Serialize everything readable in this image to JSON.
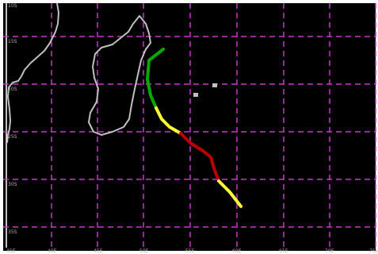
{
  "map": {
    "background_color": "#000000",
    "grid_color": "#cc33cc",
    "coastline_color": "#c0c0c0",
    "track_colors": {
      "green": "#00aa00",
      "yellow": "#ffff33",
      "red": "#bb0000"
    },
    "latitude_labels": [
      "10S",
      "15S",
      "20S",
      "25S",
      "30S",
      "35S"
    ],
    "longitude_labels": [
      "35E",
      "40E",
      "45E",
      "50E",
      "55E",
      "60E",
      "65E",
      "70E",
      "75E"
    ]
  }
}
